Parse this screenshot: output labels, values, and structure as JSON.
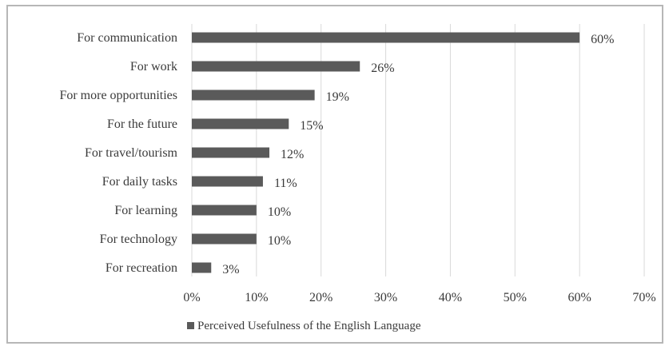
{
  "chart_data": {
    "type": "bar",
    "orientation": "horizontal",
    "categories": [
      "For communication",
      "For work",
      "For more opportunities",
      "For the future",
      "For travel/tourism",
      "For daily tasks",
      "For learning",
      "For technology",
      "For recreation"
    ],
    "series": [
      {
        "name": "Perceived Usefulness of the English Language",
        "values": [
          60,
          26,
          19,
          15,
          12,
          11,
          10,
          10,
          3
        ],
        "labels": [
          "60%",
          "26%",
          "19%",
          "15%",
          "12%",
          "11%",
          "10%",
          "10%",
          "3%"
        ],
        "color": "#5a5a5a"
      }
    ],
    "xlim": [
      0,
      70
    ],
    "xticks": [
      0,
      10,
      20,
      30,
      40,
      50,
      60,
      70
    ],
    "xtick_labels": [
      "0%",
      "10%",
      "20%",
      "30%",
      "40%",
      "50%",
      "60%",
      "70%"
    ],
    "grid": "vertical",
    "gridline_color": "#d9d9d9",
    "legend_position": "bottom",
    "legend_text": "Perceived Usefulness of the English Language"
  }
}
